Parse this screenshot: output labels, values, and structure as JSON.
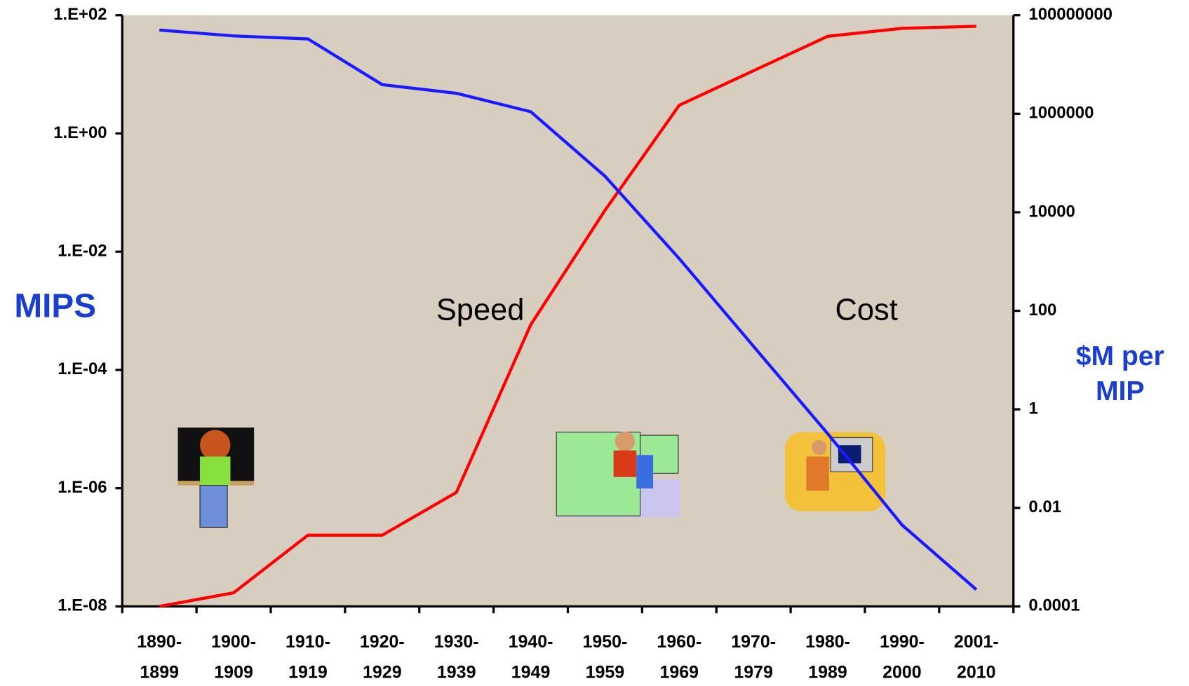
{
  "chart_data": {
    "type": "line",
    "categories": [
      "1890- 1899",
      "1900- 1909",
      "1910- 1919",
      "1920- 1929",
      "1930- 1939",
      "1940- 1949",
      "1950- 1959",
      "1960- 1969",
      "1970- 1979",
      "1980- 1989",
      "1990- 2000",
      "2001- 2010"
    ],
    "series": [
      {
        "name": "Speed",
        "color": "#ff0000",
        "values": [
          1e-08,
          1.7e-08,
          1.6e-07,
          1.6e-07,
          8.5e-07,
          0.00058,
          0.05,
          3,
          11.5,
          44,
          60,
          65
        ]
      },
      {
        "name": "Cost",
        "color": "#1a1aff",
        "axis": "y2",
        "values": [
          50000000,
          38000000,
          33000000,
          3900000,
          2600000,
          1100000,
          54000,
          1150,
          19,
          0.32,
          0.0045,
          0.00022
        ]
      }
    ],
    "ylabel": "MIPS",
    "y2label": "$M per MIP",
    "axis_label_color": "#1a3fd0",
    "ylog": true,
    "y2log": true,
    "ylim": [
      1e-08,
      100
    ],
    "yticks": [
      {
        "value": 1e-08,
        "label": "1.E-08"
      },
      {
        "value": 1e-06,
        "label": "1.E-06"
      },
      {
        "value": 0.0001,
        "label": "1.E-04"
      },
      {
        "value": 0.01,
        "label": "1.E-02"
      },
      {
        "value": 1,
        "label": "1.E+00"
      },
      {
        "value": 100,
        "label": "1.E+02"
      }
    ],
    "y2lim": [
      0.0001,
      100000000
    ],
    "y2ticks": [
      0.0001,
      0.01,
      1,
      100,
      10000,
      1000000,
      100000000
    ],
    "grid": false,
    "background": "#d8cebf"
  }
}
